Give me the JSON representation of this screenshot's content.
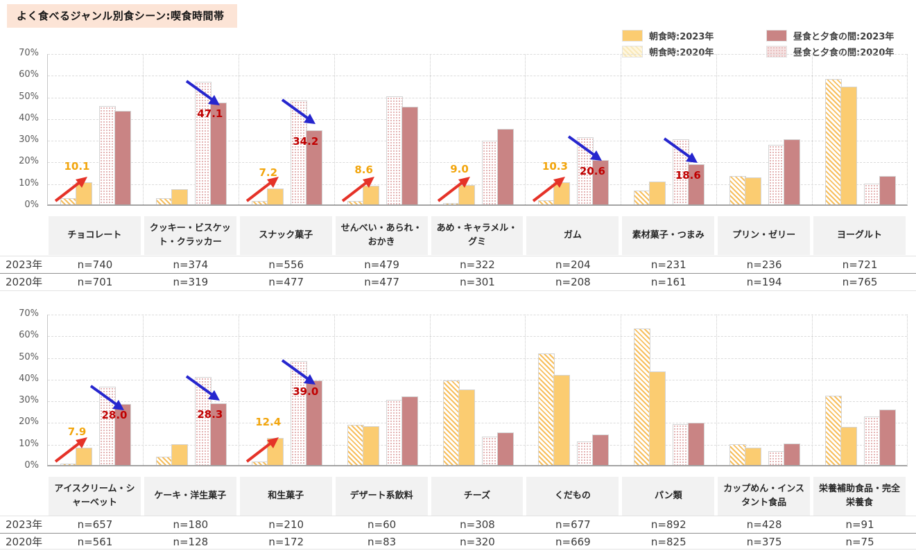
{
  "title": "よく食べるジャンル別食シーン:喫食時間帯",
  "legend": {
    "items": [
      {
        "label": "朝食時:2023年",
        "series": "morning_2023"
      },
      {
        "label": "朝食時:2020年",
        "series": "morning_2020"
      },
      {
        "label": "昼食と夕食の間:2023年",
        "series": "between_2023"
      },
      {
        "label": "昼食と夕食の間:2020年",
        "series": "between_2020"
      }
    ]
  },
  "table": {
    "row_2023_label": "2023年",
    "row_2020_label": "2020年"
  },
  "colors": {
    "morning_2023": "#FBCC71",
    "morning_2020_stripe": "#F7BE5C",
    "between_2023": "#C98484",
    "between_2020_dot": "#E2ADAD",
    "morning_value_label": "#F2A50C",
    "between_value_label": "#C00000",
    "red_arrow": "#E53228",
    "blue_arrow": "#2626CE",
    "title_bg": "#FCE4D6",
    "category_cell_bg": "#F2F2F2"
  },
  "chart_data": [
    {
      "type": "bar",
      "y_axis": {
        "min": 0,
        "max": 70,
        "step": 10,
        "unit": "%"
      },
      "series_names": [
        "朝食時:2020年",
        "朝食時:2023年",
        "昼食と夕食の間:2020年",
        "昼食と夕食の間:2023年"
      ],
      "groups": [
        {
          "category": "チョコレート",
          "n_2023": "n=740",
          "n_2020": "n=701",
          "values": {
            "morning_2020": 3,
            "morning_2023": 10.1,
            "between_2020": 45.5,
            "between_2023": 43
          },
          "labels": {
            "morning_2023": "10.1"
          },
          "arrows": {
            "morning_2023": "red-up"
          }
        },
        {
          "category": "クッキー・ビスケット・クラッカー",
          "n_2023": "n=374",
          "n_2020": "n=319",
          "values": {
            "morning_2020": 3,
            "morning_2023": 7,
            "between_2020": 56.5,
            "between_2023": 47.1
          },
          "labels": {
            "between_2023": "47.1"
          },
          "arrows": {
            "between_2023": "blue-down"
          }
        },
        {
          "category": "スナック菓子",
          "n_2023": "n=556",
          "n_2020": "n=477",
          "values": {
            "morning_2020": 1.5,
            "morning_2023": 7.2,
            "between_2020": 48,
            "between_2023": 34.2
          },
          "labels": {
            "morning_2023": "7.2",
            "between_2023": "34.2"
          },
          "arrows": {
            "morning_2023": "red-up",
            "between_2023": "blue-down"
          }
        },
        {
          "category": "せんべい・あられ・おかき",
          "n_2023": "n=479",
          "n_2020": "n=477",
          "values": {
            "morning_2020": 1.5,
            "morning_2023": 8.6,
            "between_2020": 50,
            "between_2023": 45
          },
          "labels": {
            "morning_2023": "8.6"
          },
          "arrows": {
            "morning_2023": "red-up"
          }
        },
        {
          "category": "あめ・キャラメル・グミ",
          "n_2023": "n=322",
          "n_2020": "n=301",
          "values": {
            "morning_2020": 0.5,
            "morning_2023": 9,
            "between_2020": 29.5,
            "between_2023": 35
          },
          "labels": {
            "morning_2023": "9.0"
          },
          "arrows": {
            "morning_2023": "red-up"
          }
        },
        {
          "category": "ガム",
          "n_2023": "n=204",
          "n_2020": "n=208",
          "values": {
            "morning_2020": 2,
            "morning_2023": 10.3,
            "between_2020": 31,
            "between_2023": 20.6
          },
          "labels": {
            "morning_2023": "10.3",
            "between_2023": "20.6"
          },
          "arrows": {
            "morning_2023": "red-up",
            "between_2023": "blue-down"
          }
        },
        {
          "category": "素材菓子・つまみ",
          "n_2023": "n=231",
          "n_2020": "n=161",
          "values": {
            "morning_2020": 6.5,
            "morning_2023": 10.4,
            "between_2020": 30,
            "between_2023": 18.6
          },
          "labels": {
            "between_2023": "18.6"
          },
          "arrows": {
            "between_2023": "blue-down"
          }
        },
        {
          "category": "プリン・ゼリー",
          "n_2023": "n=236",
          "n_2020": "n=194",
          "values": {
            "morning_2020": 13,
            "morning_2023": 12.5,
            "between_2020": 27.5,
            "between_2023": 30
          }
        },
        {
          "category": "ヨーグルト",
          "n_2023": "n=721",
          "n_2020": "n=765",
          "values": {
            "morning_2020": 58,
            "morning_2023": 54.5,
            "between_2020": 9.5,
            "between_2023": 13
          }
        }
      ]
    },
    {
      "type": "bar",
      "y_axis": {
        "min": 0,
        "max": 70,
        "step": 10,
        "unit": "%"
      },
      "series_names": [
        "朝食時:2020年",
        "朝食時:2023年",
        "昼食と夕食の間:2020年",
        "昼食と夕食の間:2023年"
      ],
      "groups": [
        {
          "category": "アイスクリーム・シャーベット",
          "n_2023": "n=657",
          "n_2020": "n=561",
          "values": {
            "morning_2020": 0.5,
            "morning_2023": 7.9,
            "between_2020": 36,
            "between_2023": 28
          },
          "labels": {
            "morning_2023": "7.9",
            "between_2023": "28.0"
          },
          "arrows": {
            "morning_2023": "red-up",
            "between_2023": "blue-down"
          }
        },
        {
          "category": "ケーキ・洋生菓子",
          "n_2023": "n=180",
          "n_2020": "n=128",
          "values": {
            "morning_2020": 4,
            "morning_2023": 9.5,
            "between_2020": 40.5,
            "between_2023": 28.3
          },
          "labels": {
            "between_2023": "28.3"
          },
          "arrows": {
            "between_2023": "blue-down"
          }
        },
        {
          "category": "和生菓子",
          "n_2023": "n=210",
          "n_2020": "n=172",
          "values": {
            "morning_2020": 1.5,
            "morning_2023": 12.4,
            "between_2020": 48,
            "between_2023": 39
          },
          "labels": {
            "morning_2023": "12.4",
            "between_2023": "39.0"
          },
          "arrows": {
            "morning_2023": "red-up",
            "between_2023": "blue-down"
          }
        },
        {
          "category": "デザート系飲料",
          "n_2023": "n=60",
          "n_2020": "n=83",
          "values": {
            "morning_2020": 18.5,
            "morning_2023": 18,
            "between_2020": 30,
            "between_2023": 31.5
          }
        },
        {
          "category": "チーズ",
          "n_2023": "n=308",
          "n_2020": "n=320",
          "values": {
            "morning_2020": 39,
            "morning_2023": 35,
            "between_2020": 13,
            "between_2023": 15
          }
        },
        {
          "category": "くだもの",
          "n_2023": "n=677",
          "n_2020": "n=669",
          "values": {
            "morning_2020": 51.5,
            "morning_2023": 41.5,
            "between_2020": 11,
            "between_2023": 14
          }
        },
        {
          "category": "パン類",
          "n_2023": "n=892",
          "n_2020": "n=825",
          "values": {
            "morning_2020": 63,
            "morning_2023": 43,
            "between_2020": 19,
            "between_2023": 19.5
          }
        },
        {
          "category": "カップめん・インスタント食品",
          "n_2023": "n=428",
          "n_2020": "n=375",
          "values": {
            "morning_2020": 9.5,
            "morning_2023": 8,
            "between_2020": 6.5,
            "between_2023": 10
          }
        },
        {
          "category": "栄養補助食品・完全栄養食",
          "n_2023": "n=91",
          "n_2020": "n=75",
          "values": {
            "morning_2020": 32,
            "morning_2023": 17.5,
            "between_2020": 22.5,
            "between_2023": 25.5
          }
        }
      ]
    }
  ]
}
